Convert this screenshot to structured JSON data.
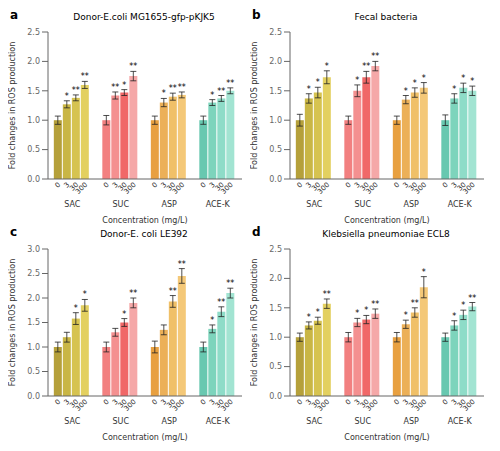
{
  "chart_data": [
    {
      "type": "bar",
      "title": "Donor-E.coli MG1655-gfp-pKJK5",
      "annotations": [
        {
          "text": "a"
        }
      ],
      "xlabel": "Concentration (mg/L)",
      "ylabel": "Fold changes in ROS production",
      "categories": [
        "SAC",
        "SUC",
        "ASP",
        "ACE-K"
      ],
      "ylim": [
        0,
        2.5
      ],
      "yticks": [
        {
          "value": 0,
          "label": "0.0"
        },
        0.5,
        {
          "value": 1,
          "label": "1.0"
        },
        1.5,
        {
          "value": 2,
          "label": "2.0"
        },
        2.5
      ],
      "grid": false,
      "series": [
        {
          "name": "0",
          "values": [
            1.0,
            1.0,
            1.0,
            1.0
          ],
          "errors": [
            0.07,
            0.08,
            0.07,
            0.07
          ],
          "significance": [
            null,
            null,
            null,
            null
          ],
          "colors": [
            "#b5a03a",
            "#f28080",
            "#e8a040",
            "#68c8b0"
          ]
        },
        {
          "name": "3",
          "values": [
            1.27,
            1.42,
            1.3,
            1.3
          ],
          "errors": [
            0.06,
            0.06,
            0.07,
            0.05
          ],
          "significance": [
            "*",
            "**",
            "*",
            "*"
          ],
          "colors": [
            "#c9b645",
            "#f49090",
            "#ecb058",
            "#7dd4bc"
          ]
        },
        {
          "name": "30",
          "values": [
            1.38,
            1.47,
            1.4,
            1.37
          ],
          "errors": [
            0.05,
            0.05,
            0.06,
            0.05
          ],
          "significance": [
            "**",
            "*",
            "**",
            "**"
          ],
          "colors": [
            "#d6c350",
            "#f06868",
            "#f0c068",
            "#8edcc8"
          ]
        },
        {
          "name": "300",
          "values": [
            1.6,
            1.75,
            1.43,
            1.5
          ],
          "errors": [
            0.06,
            0.08,
            0.05,
            0.05
          ],
          "significance": [
            "**",
            "**",
            "**",
            "**"
          ],
          "colors": [
            "#e3d060",
            "#f5a8a8",
            "#f4c878",
            "#a2e4d2"
          ]
        }
      ]
    },
    {
      "type": "bar",
      "title": "Fecal bacteria",
      "annotations": [
        {
          "text": "b"
        }
      ],
      "xlabel": "Concentration (mg/L)",
      "ylabel": "Fold changes in ROS production",
      "categories": [
        "SAC",
        "SUC",
        "ASP",
        "ACE-K"
      ],
      "ylim": [
        0,
        2.5
      ],
      "yticks": [
        {
          "value": 0,
          "label": "0.0"
        },
        0.5,
        {
          "value": 1,
          "label": "1.0"
        },
        1.5,
        {
          "value": 2,
          "label": "2.0"
        },
        2.5
      ],
      "grid": false,
      "series": [
        {
          "name": "0",
          "values": [
            1.0,
            1.0,
            1.0,
            1.0
          ],
          "errors": [
            0.1,
            0.07,
            0.07,
            0.09
          ],
          "significance": [
            null,
            null,
            null,
            null
          ],
          "colors": [
            "#b5a03a",
            "#f28080",
            "#e8a040",
            "#68c8b0"
          ]
        },
        {
          "name": "3",
          "values": [
            1.37,
            1.5,
            1.35,
            1.37
          ],
          "errors": [
            0.08,
            0.1,
            0.07,
            0.08
          ],
          "significance": [
            "*",
            "*",
            "*",
            "*"
          ],
          "colors": [
            "#c9b645",
            "#f49090",
            "#ecb058",
            "#7dd4bc"
          ]
        },
        {
          "name": "30",
          "values": [
            1.47,
            1.73,
            1.47,
            1.55
          ],
          "errors": [
            0.09,
            0.1,
            0.08,
            0.08
          ],
          "significance": [
            "*",
            "**",
            "*",
            "*"
          ],
          "colors": [
            "#d6c350",
            "#f06868",
            "#f0c068",
            "#8edcc8"
          ]
        },
        {
          "name": "300",
          "values": [
            1.73,
            1.92,
            1.55,
            1.5
          ],
          "errors": [
            0.11,
            0.08,
            0.09,
            0.08
          ],
          "significance": [
            "*",
            "**",
            "*",
            "*"
          ],
          "colors": [
            "#e3d060",
            "#f5a8a8",
            "#f4c878",
            "#a2e4d2"
          ]
        }
      ]
    },
    {
      "type": "bar",
      "title": "Donor-E. coli LE392",
      "annotations": [
        {
          "text": "c"
        }
      ],
      "xlabel": "Concentration (mg/L)",
      "ylabel": "Fold changes in ROS production",
      "categories": [
        "SAC",
        "SUC",
        "ASP",
        "ACE-K"
      ],
      "ylim": [
        0,
        3.0
      ],
      "yticks": [
        {
          "value": 0,
          "label": "0.0"
        },
        0.5,
        {
          "value": 1,
          "label": "1.0"
        },
        1.5,
        {
          "value": 2,
          "label": "2.0"
        },
        2.5,
        {
          "value": 3,
          "label": "3.0"
        }
      ],
      "grid": false,
      "series": [
        {
          "name": "0",
          "values": [
            1.0,
            1.0,
            1.0,
            1.0
          ],
          "errors": [
            0.1,
            0.1,
            0.12,
            0.1
          ],
          "significance": [
            null,
            null,
            null,
            null
          ],
          "colors": [
            "#b5a03a",
            "#f28080",
            "#e8a040",
            "#68c8b0"
          ]
        },
        {
          "name": "3",
          "values": [
            1.2,
            1.3,
            1.35,
            1.37
          ],
          "errors": [
            0.1,
            0.08,
            0.1,
            0.08
          ],
          "significance": [
            null,
            null,
            null,
            "*"
          ],
          "colors": [
            "#c9b645",
            "#f49090",
            "#ecb058",
            "#7dd4bc"
          ]
        },
        {
          "name": "30",
          "values": [
            1.58,
            1.5,
            1.93,
            1.72
          ],
          "errors": [
            0.12,
            0.08,
            0.12,
            0.1
          ],
          "significance": [
            "*",
            "*",
            "**",
            "**"
          ],
          "colors": [
            "#d6c350",
            "#f06868",
            "#f0c068",
            "#8edcc8"
          ]
        },
        {
          "name": "300",
          "values": [
            1.85,
            1.9,
            2.45,
            2.1
          ],
          "errors": [
            0.12,
            0.1,
            0.15,
            0.1
          ],
          "significance": [
            "*",
            "**",
            "**",
            "**"
          ],
          "colors": [
            "#e3d060",
            "#f5a8a8",
            "#f4c878",
            "#a2e4d2"
          ]
        }
      ]
    },
    {
      "type": "bar",
      "title": "Klebsiella pneumoniae ECL8",
      "annotations": [
        {
          "text": "d"
        }
      ],
      "xlabel": "Concentration (mg/L)",
      "ylabel": "Fold changes in ROS production",
      "categories": [
        "SAC",
        "SUC",
        "ASP",
        "ACE-K"
      ],
      "ylim": [
        0,
        2.5
      ],
      "yticks": [
        {
          "value": 0,
          "label": "0.0"
        },
        0.5,
        {
          "value": 1,
          "label": "1.0"
        },
        1.5,
        {
          "value": 2,
          "label": "2.0"
        },
        2.5
      ],
      "grid": false,
      "series": [
        {
          "name": "0",
          "values": [
            1.0,
            1.0,
            1.0,
            1.0
          ],
          "errors": [
            0.07,
            0.08,
            0.08,
            0.07
          ],
          "significance": [
            null,
            null,
            null,
            null
          ],
          "colors": [
            "#b5a03a",
            "#f28080",
            "#e8a040",
            "#68c8b0"
          ]
        },
        {
          "name": "3",
          "values": [
            1.2,
            1.25,
            1.22,
            1.2
          ],
          "errors": [
            0.06,
            0.07,
            0.07,
            0.08
          ],
          "significance": [
            "*",
            "*",
            "*",
            "*"
          ],
          "colors": [
            "#c9b645",
            "#f49090",
            "#ecb058",
            "#7dd4bc"
          ]
        },
        {
          "name": "30",
          "values": [
            1.28,
            1.3,
            1.42,
            1.38
          ],
          "errors": [
            0.06,
            0.07,
            0.08,
            0.08
          ],
          "significance": [
            "*",
            "*",
            "**",
            "*"
          ],
          "colors": [
            "#d6c350",
            "#f06868",
            "#f0c068",
            "#8edcc8"
          ]
        },
        {
          "name": "300",
          "values": [
            1.57,
            1.4,
            1.85,
            1.52
          ],
          "errors": [
            0.08,
            0.08,
            0.18,
            0.07
          ],
          "significance": [
            "**",
            "**",
            "*",
            "**"
          ],
          "colors": [
            "#e3d060",
            "#f5a8a8",
            "#f4c878",
            "#a2e4d2"
          ]
        }
      ]
    }
  ]
}
